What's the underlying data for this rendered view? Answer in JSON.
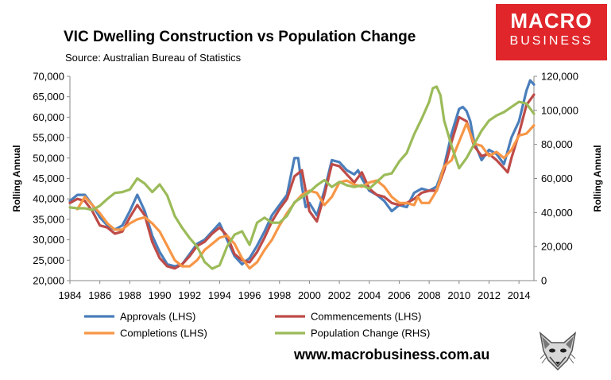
{
  "title": "VIC Dwelling Construction vs Population Change",
  "subtitle": "Source: Australian Bureau of Statistics",
  "logo": {
    "line1": "MACRO",
    "line2": "BUSINESS"
  },
  "url": "www.macrobusiness.com.au",
  "chart_data": {
    "type": "line",
    "title": "VIC Dwelling Construction vs Population Change",
    "subtitle": "Source: Australian Bureau of Statistics",
    "ylabel": "Rolling Annual",
    "y2label": "Rolling Annual",
    "xlim": [
      1984,
      2015
    ],
    "ylim": [
      20000,
      70000
    ],
    "y2lim": [
      0,
      120000
    ],
    "x_ticks": [
      1984,
      1986,
      1988,
      1990,
      1992,
      1994,
      1996,
      1998,
      2000,
      2002,
      2004,
      2006,
      2008,
      2010,
      2012,
      2014
    ],
    "x_tick_labels": [
      "1984",
      "1986",
      "1988",
      "1990",
      "1992",
      "1994",
      "1996",
      "1998",
      "2000",
      "2002",
      "2004",
      "2006",
      "2008",
      "2010",
      "2012",
      "2014"
    ],
    "y_ticks": [
      20000,
      25000,
      30000,
      35000,
      40000,
      45000,
      50000,
      55000,
      60000,
      65000,
      70000
    ],
    "y_tick_labels": [
      "20,000",
      "25,000",
      "30,000",
      "35,000",
      "40,000",
      "45,000",
      "50,000",
      "55,000",
      "60,000",
      "65,000",
      "70,000"
    ],
    "y2_ticks": [
      0,
      20000,
      40000,
      60000,
      80000,
      100000,
      120000
    ],
    "y2_tick_labels": [
      "0",
      "20,000",
      "40,000",
      "60,000",
      "80,000",
      "100,000",
      "120,000"
    ],
    "grid": false,
    "legend_position": "bottom",
    "series": [
      {
        "name": "Approvals (LHS)",
        "axis": "left",
        "color": "#4a7ebb",
        "x": [
          1984.0,
          1984.5,
          1985.0,
          1985.5,
          1986.0,
          1986.5,
          1987.0,
          1987.5,
          1988.0,
          1988.5,
          1989.0,
          1989.5,
          1990.0,
          1990.5,
          1991.0,
          1991.5,
          1992.0,
          1992.5,
          1993.0,
          1993.5,
          1994.0,
          1994.5,
          1995.0,
          1995.5,
          1996.0,
          1996.5,
          1997.0,
          1997.5,
          1998.0,
          1998.5,
          1999.0,
          1999.25,
          1999.5,
          1999.75,
          2000.0,
          2000.5,
          2001.0,
          2001.5,
          2002.0,
          2002.5,
          2003.0,
          2003.25,
          2003.5,
          2004.0,
          2004.5,
          2005.0,
          2005.5,
          2006.0,
          2006.5,
          2007.0,
          2007.5,
          2008.0,
          2008.5,
          2009.0,
          2009.5,
          2010.0,
          2010.25,
          2010.5,
          2010.75,
          2011.0,
          2011.5,
          2012.0,
          2012.5,
          2013.0,
          2013.5,
          2014.0,
          2014.5,
          2014.75,
          2015.0
        ],
        "values": [
          39500,
          41000,
          41000,
          38500,
          35500,
          33500,
          32500,
          33500,
          37000,
          41000,
          37000,
          31000,
          27000,
          24000,
          23500,
          24000,
          26500,
          29000,
          30000,
          32000,
          34000,
          30000,
          26000,
          24000,
          25500,
          28500,
          32000,
          36000,
          38500,
          41000,
          50000,
          50000,
          43000,
          38000,
          39000,
          36000,
          42000,
          49500,
          49000,
          47000,
          46000,
          47000,
          45000,
          42000,
          41000,
          39500,
          37000,
          38500,
          38000,
          41500,
          42500,
          42000,
          43000,
          48000,
          56000,
          62000,
          62500,
          61500,
          59000,
          54000,
          49500,
          52000,
          51000,
          48500,
          55000,
          59000,
          66500,
          69000,
          68000
        ]
      },
      {
        "name": "Commencements (LHS)",
        "axis": "left",
        "color": "#be4b48",
        "x": [
          1984.0,
          1984.5,
          1985.0,
          1985.5,
          1986.0,
          1986.5,
          1987.0,
          1987.5,
          1988.0,
          1988.5,
          1989.0,
          1989.5,
          1990.0,
          1990.5,
          1991.0,
          1991.5,
          1992.0,
          1992.5,
          1993.0,
          1993.5,
          1994.0,
          1994.5,
          1995.0,
          1995.5,
          1996.0,
          1996.5,
          1997.0,
          1997.5,
          1998.0,
          1998.5,
          1999.0,
          1999.5,
          2000.0,
          2000.5,
          2001.0,
          2001.5,
          2002.0,
          2002.5,
          2003.0,
          2003.5,
          2004.0,
          2004.5,
          2005.0,
          2005.5,
          2006.0,
          2006.5,
          2007.0,
          2007.5,
          2008.0,
          2008.5,
          2009.0,
          2009.5,
          2010.0,
          2010.5,
          2011.0,
          2011.5,
          2012.0,
          2012.5,
          2013.0,
          2013.25,
          2013.5,
          2014.0,
          2014.5,
          2015.0
        ],
        "values": [
          39000,
          40000,
          39500,
          37000,
          33500,
          33000,
          31500,
          32000,
          35500,
          38500,
          36000,
          29500,
          25500,
          23500,
          23000,
          24000,
          26000,
          28500,
          29500,
          31500,
          33000,
          31000,
          26500,
          25000,
          24500,
          27000,
          30500,
          34500,
          37500,
          40000,
          45500,
          47000,
          37000,
          34500,
          41000,
          48500,
          48000,
          46000,
          44000,
          46500,
          42500,
          41000,
          40500,
          39000,
          38500,
          39000,
          40000,
          41500,
          42000,
          42000,
          47000,
          54000,
          60000,
          59000,
          53000,
          50500,
          51000,
          49500,
          47500,
          46500,
          50000,
          56000,
          63000,
          65500
        ]
      },
      {
        "name": "Completions (LHS)",
        "axis": "left",
        "color": "#f79646",
        "x": [
          1984.5,
          1985.0,
          1985.5,
          1986.0,
          1986.5,
          1987.0,
          1987.5,
          1988.0,
          1988.5,
          1989.0,
          1989.5,
          1990.0,
          1990.5,
          1991.0,
          1991.5,
          1992.0,
          1992.5,
          1993.0,
          1993.5,
          1994.0,
          1994.5,
          1995.0,
          1995.5,
          1996.0,
          1996.5,
          1997.0,
          1997.5,
          1998.0,
          1998.5,
          1999.0,
          1999.5,
          2000.0,
          2000.5,
          2001.0,
          2001.5,
          2002.0,
          2002.5,
          2003.0,
          2003.5,
          2004.0,
          2004.5,
          2005.0,
          2005.5,
          2006.0,
          2006.5,
          2007.0,
          2007.25,
          2007.5,
          2008.0,
          2008.5,
          2009.0,
          2009.5,
          2010.0,
          2010.5,
          2011.0,
          2011.5,
          2012.0,
          2012.5,
          2013.0,
          2013.5,
          2014.0,
          2014.5,
          2015.0
        ],
        "values": [
          37500,
          40500,
          38500,
          36500,
          34000,
          32500,
          32500,
          34000,
          35000,
          35500,
          34000,
          32000,
          28500,
          25000,
          23500,
          23500,
          25000,
          27500,
          29000,
          30500,
          31000,
          29000,
          25500,
          23000,
          24500,
          27500,
          30000,
          33500,
          36500,
          39000,
          41000,
          42000,
          41500,
          38500,
          40500,
          44000,
          44500,
          43500,
          43000,
          44000,
          44500,
          43000,
          40500,
          39000,
          39000,
          38500,
          40500,
          39000,
          39000,
          42000,
          48000,
          49500,
          54000,
          58500,
          53500,
          53000,
          50500,
          51500,
          50000,
          52000,
          55500,
          56000,
          58000
        ]
      },
      {
        "name": "Population Change (RHS)",
        "axis": "right",
        "color": "#9bbb59",
        "x": [
          1984.0,
          1984.5,
          1985.0,
          1985.5,
          1986.0,
          1986.5,
          1987.0,
          1987.5,
          1988.0,
          1988.5,
          1989.0,
          1989.5,
          1990.0,
          1990.5,
          1991.0,
          1991.5,
          1992.0,
          1992.5,
          1993.0,
          1993.5,
          1994.0,
          1994.5,
          1995.0,
          1995.5,
          1996.0,
          1996.5,
          1997.0,
          1997.5,
          1998.0,
          1998.5,
          1999.0,
          1999.5,
          2000.0,
          2000.5,
          2001.0,
          2001.5,
          2002.0,
          2002.5,
          2003.0,
          2003.5,
          2004.0,
          2004.5,
          2005.0,
          2005.5,
          2006.0,
          2006.5,
          2007.0,
          2007.5,
          2008.0,
          2008.25,
          2008.5,
          2008.75,
          2009.0,
          2009.5,
          2010.0,
          2010.5,
          2011.0,
          2011.5,
          2012.0,
          2012.5,
          2013.0,
          2013.5,
          2014.0,
          2014.5,
          2015.0
        ],
        "values": [
          43000,
          42500,
          42500,
          41500,
          44000,
          48000,
          51500,
          52000,
          53500,
          60000,
          57000,
          52000,
          56500,
          50000,
          38000,
          31000,
          25000,
          20000,
          11000,
          7000,
          9000,
          20000,
          27000,
          29000,
          21000,
          34000,
          37000,
          34000,
          34000,
          38000,
          46000,
          49000,
          52000,
          56000,
          59000,
          55000,
          58000,
          56000,
          55000,
          56000,
          54000,
          58000,
          62000,
          63000,
          70000,
          75000,
          86000,
          95000,
          105000,
          113000,
          114000,
          109000,
          94000,
          79000,
          66000,
          72000,
          80000,
          88000,
          94000,
          97000,
          99000,
          102000,
          105000,
          104000,
          98000
        ]
      }
    ]
  }
}
